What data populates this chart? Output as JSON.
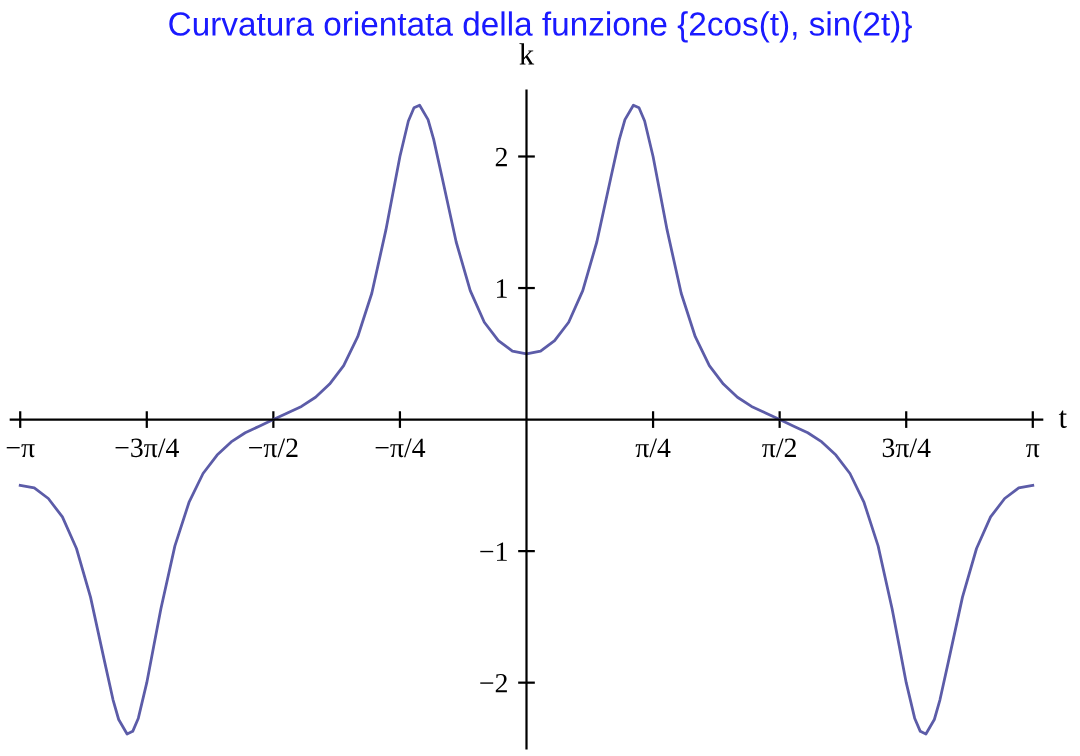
{
  "chart_data": {
    "type": "line",
    "title": "Curvatura orientata della funzione {2cos(t), sin(2t)}",
    "xlabel": "t",
    "ylabel": "k",
    "series": [
      {
        "color": "#5c5ca8",
        "x": [
          -3.1416,
          -3.0543,
          -2.9671,
          -2.8798,
          -2.7925,
          -2.7053,
          -2.618,
          -2.5656,
          -2.5307,
          -2.4784,
          -2.4435,
          -2.4086,
          -2.3562,
          -2.3126,
          -2.2689,
          -2.1817,
          -2.0944,
          -2.0071,
          -1.9199,
          -1.8326,
          -1.7453,
          -1.6581,
          -1.5708,
          -1.4835,
          -1.3963,
          -1.309,
          -1.2217,
          -1.1345,
          -1.0472,
          -0.9599,
          -0.8727,
          -0.829,
          -0.7854,
          -0.733,
          -0.6981,
          -0.6632,
          -0.6109,
          -0.576,
          -0.5236,
          -0.4363,
          -0.3491,
          -0.2618,
          -0.1745,
          -0.0873,
          0,
          0.0873,
          0.1745,
          0.2618,
          0.3491,
          0.4363,
          0.5236,
          0.576,
          0.6109,
          0.6632,
          0.6981,
          0.733,
          0.7854,
          0.829,
          0.8727,
          0.9599,
          1.0472,
          1.1345,
          1.2217,
          1.309,
          1.3963,
          1.4835,
          1.5708,
          1.6581,
          1.7453,
          1.8326,
          1.9199,
          2.0071,
          2.0944,
          2.1817,
          2.2689,
          2.3126,
          2.3562,
          2.4086,
          2.4435,
          2.4784,
          2.5307,
          2.5656,
          2.618,
          2.7053,
          2.7925,
          2.8798,
          2.9671,
          3.0543,
          3.1416
        ],
        "values": [
          -0.5,
          -0.52,
          -0.6,
          -0.74,
          -0.98,
          -1.35,
          -1.84,
          -2.13,
          -2.28,
          -2.39,
          -2.37,
          -2.27,
          -2.0,
          -1.72,
          -1.44,
          -0.96,
          -0.63,
          -0.41,
          -0.27,
          -0.17,
          -0.1,
          -0.05,
          0,
          0.05,
          0.1,
          0.17,
          0.27,
          0.41,
          0.63,
          0.96,
          1.44,
          1.72,
          2.0,
          2.27,
          2.37,
          2.39,
          2.28,
          2.13,
          1.84,
          1.35,
          0.98,
          0.74,
          0.6,
          0.52,
          0.5,
          0.52,
          0.6,
          0.74,
          0.98,
          1.35,
          1.84,
          2.13,
          2.28,
          2.39,
          2.37,
          2.27,
          2.0,
          1.72,
          1.44,
          0.96,
          0.63,
          0.41,
          0.27,
          0.17,
          0.1,
          0.05,
          0,
          -0.05,
          -0.1,
          -0.17,
          -0.27,
          -0.41,
          -0.63,
          -0.96,
          -1.44,
          -1.72,
          -2.0,
          -2.27,
          -2.37,
          -2.39,
          -2.28,
          -2.13,
          -1.84,
          -1.35,
          -0.98,
          -0.74,
          -0.6,
          -0.52,
          -0.5
        ]
      }
    ],
    "xlim": [
      -3.2,
      3.2
    ],
    "ylim": [
      -2.5,
      2.5
    ],
    "xticks": [
      {
        "value": -3.1416,
        "label": "−π"
      },
      {
        "value": -2.3562,
        "label": "−3π/4"
      },
      {
        "value": -1.5708,
        "label": "−π/2"
      },
      {
        "value": -0.7854,
        "label": "−π/4"
      },
      {
        "value": 0.7854,
        "label": "π/4"
      },
      {
        "value": 1.5708,
        "label": "π/2"
      },
      {
        "value": 2.3562,
        "label": "3π/4"
      },
      {
        "value": 3.1416,
        "label": "π"
      }
    ],
    "yticks": [
      {
        "value": -2,
        "label": "−2"
      },
      {
        "value": -1,
        "label": "−1"
      },
      1,
      2
    ],
    "grid": false,
    "legend": false,
    "marker": "none",
    "line_style": "solid"
  }
}
